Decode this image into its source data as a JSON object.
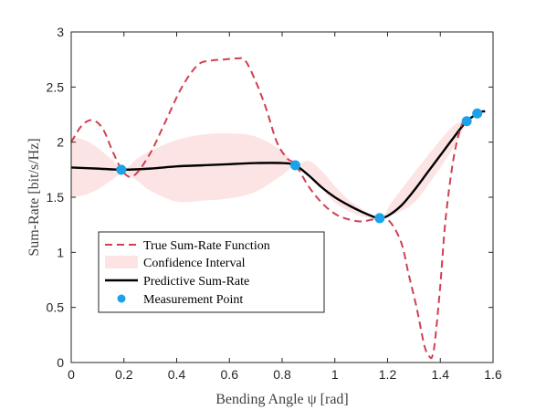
{
  "chart_data": {
    "type": "line",
    "xlabel": "Bending Angle ψ [rad]",
    "ylabel": "Sum-Rate [bit/s/Hz]",
    "xlim": [
      0,
      1.6
    ],
    "ylim": [
      0,
      3
    ],
    "xticks": [
      0,
      0.2,
      0.4,
      0.6,
      0.8,
      1,
      1.2,
      1.4,
      1.6
    ],
    "xtick_labels": [
      "0",
      "0.2",
      "0.4",
      "0.6",
      "0.8",
      "1",
      "1.2",
      "1.4",
      "1.6"
    ],
    "yticks": [
      0,
      0.5,
      1,
      1.5,
      2,
      2.5,
      3
    ],
    "ytick_labels": [
      "0",
      "0.5",
      "1",
      "1.5",
      "2",
      "2.5",
      "3"
    ],
    "grid": false,
    "legend_placement": "lower-left",
    "colors": {
      "true": "#d04050",
      "confidence": "#fde4e4",
      "predictive": "#000000",
      "measurement": "#1aa3ea"
    },
    "series": [
      {
        "name": "True Sum-Rate Function",
        "style": "dashed",
        "x": [
          0,
          0.04,
          0.08,
          0.12,
          0.16,
          0.2,
          0.24,
          0.3,
          0.36,
          0.42,
          0.48,
          0.53,
          0.58,
          0.63,
          0.66,
          0.7,
          0.74,
          0.78,
          0.82,
          0.85,
          0.9,
          0.95,
          1.0,
          1.05,
          1.1,
          1.15,
          1.2,
          1.25,
          1.28,
          1.31,
          1.34,
          1.36,
          1.37,
          1.38,
          1.4,
          1.42,
          1.45,
          1.48,
          1.5
        ],
        "y": [
          2.0,
          2.15,
          2.2,
          2.12,
          1.9,
          1.72,
          1.7,
          1.9,
          2.2,
          2.5,
          2.7,
          2.74,
          2.75,
          2.76,
          2.74,
          2.55,
          2.3,
          2.0,
          1.85,
          1.8,
          1.6,
          1.45,
          1.35,
          1.3,
          1.28,
          1.3,
          1.3,
          1.1,
          0.8,
          0.5,
          0.15,
          0.05,
          0.06,
          0.2,
          0.7,
          1.3,
          1.85,
          2.15,
          2.2
        ]
      },
      {
        "name": "Confidence Interval",
        "style": "band",
        "x": [
          0,
          0.05,
          0.1,
          0.15,
          0.2,
          0.25,
          0.3,
          0.4,
          0.5,
          0.6,
          0.7,
          0.8,
          0.85,
          0.9,
          0.95,
          1.0,
          1.05,
          1.1,
          1.17,
          1.22,
          1.3,
          1.38,
          1.45,
          1.5
        ],
        "lower": [
          1.5,
          1.52,
          1.57,
          1.65,
          1.72,
          1.65,
          1.56,
          1.46,
          1.47,
          1.49,
          1.55,
          1.7,
          1.79,
          1.72,
          1.58,
          1.45,
          1.38,
          1.33,
          1.3,
          1.34,
          1.45,
          1.7,
          1.95,
          2.18
        ],
        "upper": [
          2.05,
          2.02,
          1.95,
          1.85,
          1.76,
          1.85,
          1.92,
          2.02,
          2.07,
          2.08,
          2.05,
          1.92,
          1.8,
          1.83,
          1.74,
          1.6,
          1.48,
          1.4,
          1.31,
          1.47,
          1.72,
          1.96,
          2.15,
          2.2
        ]
      },
      {
        "name": "Predictive Sum-Rate",
        "style": "solid",
        "x": [
          0,
          0.1,
          0.2,
          0.3,
          0.4,
          0.5,
          0.6,
          0.7,
          0.8,
          0.85,
          0.9,
          0.95,
          1.0,
          1.05,
          1.1,
          1.15,
          1.17,
          1.2,
          1.25,
          1.3,
          1.35,
          1.4,
          1.45,
          1.5,
          1.55,
          1.57
        ],
        "y": [
          1.77,
          1.76,
          1.75,
          1.76,
          1.78,
          1.79,
          1.8,
          1.81,
          1.81,
          1.79,
          1.7,
          1.59,
          1.5,
          1.43,
          1.37,
          1.32,
          1.31,
          1.33,
          1.42,
          1.56,
          1.72,
          1.88,
          2.04,
          2.19,
          2.27,
          2.28
        ]
      },
      {
        "name": "Measurement Point",
        "style": "markers",
        "x": [
          0.19,
          0.85,
          1.17,
          1.5,
          1.54
        ],
        "y": [
          1.75,
          1.79,
          1.31,
          2.19,
          2.26
        ]
      }
    ]
  }
}
